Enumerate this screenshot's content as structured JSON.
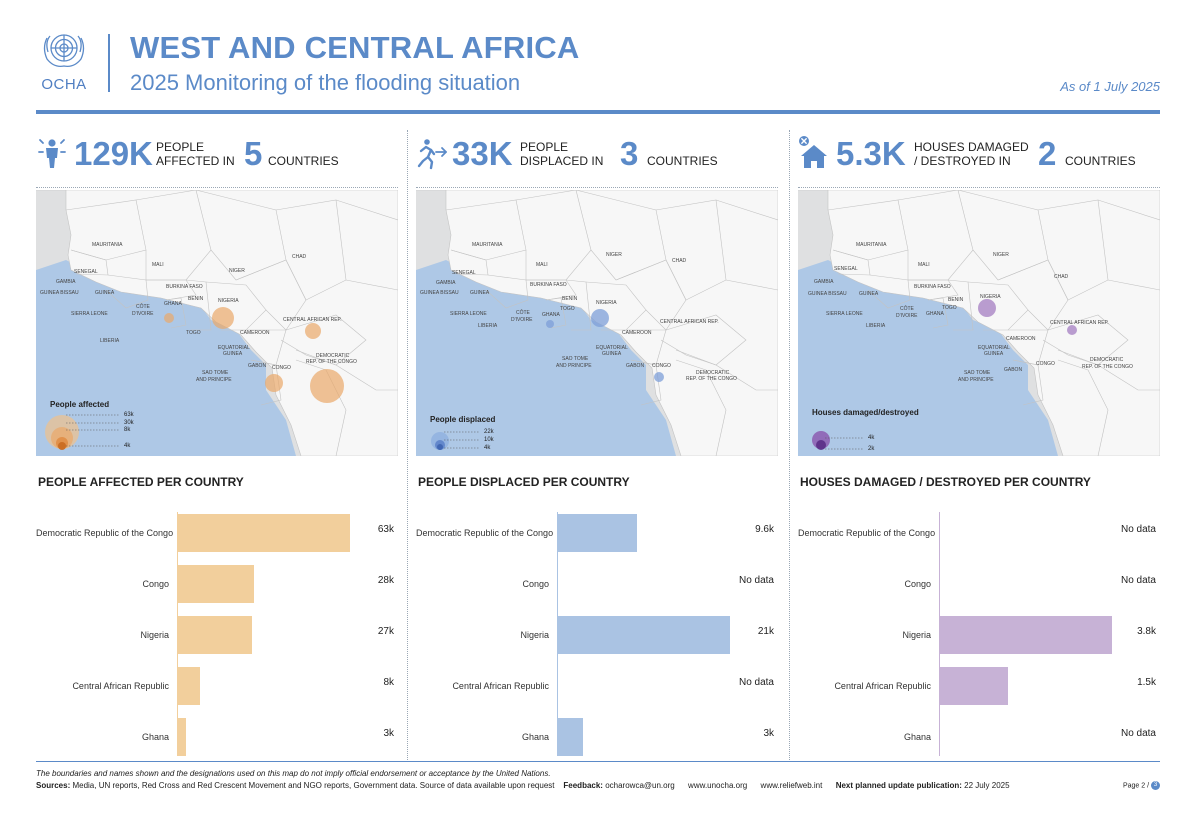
{
  "header": {
    "logo_text": "OCHA",
    "title": "WEST AND CENTRAL AFRICA",
    "subtitle": "2025 Monitoring of the flooding situation",
    "date": "As of 1 July 2025"
  },
  "colors": {
    "accent": "#5b8ac8",
    "affected": "#f2cf9c",
    "affected_bubble": "#eaa86a",
    "displaced": "#aac3e3",
    "displaced_bubble": "#7e9fd8",
    "houses": "#c7b2d6",
    "houses_bubble": "#a47ec2",
    "map_land": "#f7f7f7",
    "map_other": "#dfe0e1",
    "map_sea": "#aec8e6"
  },
  "panels": [
    {
      "icon": "person-affected-icon",
      "big": "129K",
      "label_line1": "PEOPLE",
      "label_line2": "AFFECTED IN",
      "count": "5",
      "countries": "COUNTRIES",
      "legend_title": "People affected",
      "legend_values": [
        "63k",
        "30k",
        "8k",
        "4k"
      ],
      "section_title": "PEOPLE AFFECTED PER COUNTRY"
    },
    {
      "icon": "person-displaced-icon",
      "big": "33K",
      "label_line1": "PEOPLE",
      "label_line2": "DISPLACED IN",
      "count": "3",
      "countries": "COUNTRIES",
      "legend_title": "People displaced",
      "legend_values": [
        "22k",
        "10k",
        "4k"
      ],
      "section_title": "PEOPLE DISPLACED PER COUNTRY"
    },
    {
      "icon": "house-damaged-icon",
      "big": "5.3K",
      "label_line1": "HOUSES DAMAGED",
      "label_line2": "/ DESTROYED IN",
      "count": "2",
      "countries": "COUNTRIES",
      "legend_title": "Houses damaged/destroyed",
      "legend_values": [
        "4k",
        "2k"
      ],
      "section_title": "HOUSES DAMAGED / DESTROYED PER COUNTRY"
    }
  ],
  "map_labels": {
    "mauritania": "MAURITANIA",
    "mali": "MALI",
    "niger": "NIGER",
    "chad": "CHAD",
    "senegal": "SENEGAL",
    "gambia": "GAMBIA",
    "guinea_bissau": "GUINEA BISSAU",
    "guinea": "GUINEA",
    "burkina": "BURKINA FASO",
    "benin": "BENIN",
    "ghana": "GHANA",
    "togo": "TOGO",
    "nigeria": "NIGERIA",
    "sierra_leone": "SIERRA LEONE",
    "liberia": "LIBERIA",
    "cote1": "CÔTE",
    "cote2": "D'IVOIRE",
    "cameroon": "CAMEROON",
    "car": "CENTRAL AFRICAN REP.",
    "eq1": "EQUATORIAL",
    "eq2": "GUINEA",
    "gabon": "GABON",
    "congo": "CONGO",
    "drc1": "DEMOCRATIC",
    "drc2": "REP. OF THE CONGO",
    "stp1": "SAO TOME",
    "stp2": "AND PRINCIPE"
  },
  "chart_data": [
    {
      "type": "bar",
      "orientation": "horizontal",
      "title": "PEOPLE AFFECTED PER COUNTRY",
      "categories": [
        "Democratic Republic of the Congo",
        "Congo",
        "Nigeria",
        "Central African Republic",
        "Ghana"
      ],
      "values": [
        63000,
        28000,
        27000,
        8000,
        3000
      ],
      "value_labels": [
        "63k",
        "28k",
        "27k",
        "8k",
        "3k"
      ],
      "xlim": [
        0,
        63000
      ]
    },
    {
      "type": "bar",
      "orientation": "horizontal",
      "title": "PEOPLE DISPLACED PER COUNTRY",
      "categories": [
        "Democratic Republic of the Congo",
        "Congo",
        "Nigeria",
        "Central African Republic",
        "Ghana"
      ],
      "values": [
        9600,
        null,
        21000,
        null,
        3000
      ],
      "value_labels": [
        "9.6k",
        "No data",
        "21k",
        "No data",
        "3k"
      ],
      "xlim": [
        0,
        21000
      ]
    },
    {
      "type": "bar",
      "orientation": "horizontal",
      "title": "HOUSES DAMAGED / DESTROYED PER COUNTRY",
      "categories": [
        "Democratic Republic of the Congo",
        "Congo",
        "Nigeria",
        "Central African Republic",
        "Ghana"
      ],
      "values": [
        null,
        null,
        3800,
        1500,
        null
      ],
      "value_labels": [
        "No data",
        "No data",
        "3.8k",
        "1.5k",
        "No data"
      ],
      "xlim": [
        0,
        3800
      ]
    }
  ],
  "footer": {
    "disclaimer": "The boundaries and names shown and the designations used on this map do not imply official endorsement or acceptance by the United Nations.",
    "sources_label": "Sources:",
    "sources": "Media, UN reports, Red Cross and Red Crescent Movement and NGO reports, Government data. Source of data available upon request",
    "feedback_label": "Feedback:",
    "feedback": "ocharowca@un.org",
    "site1": "www.unocha.org",
    "site2": "www.reliefweb.int",
    "update_label": "Next planned update publication:",
    "update": "22 July 2025",
    "page": "Page 2 /",
    "page_total": "3"
  }
}
